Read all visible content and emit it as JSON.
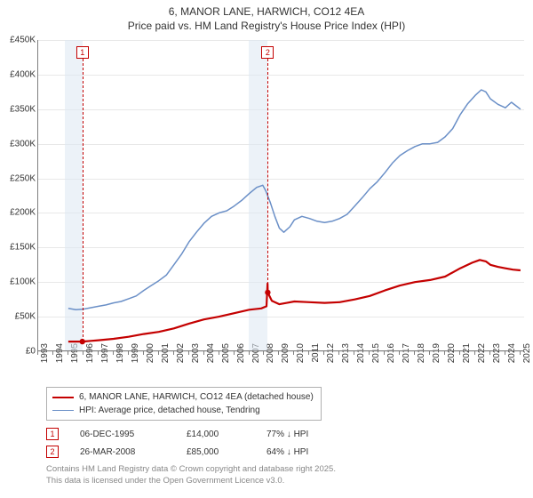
{
  "chart": {
    "title_line1": "6, MANOR LANE, HARWICH, CO12 4EA",
    "title_line2": "Price paid vs. HM Land Registry's House Price Index (HPI)",
    "title_fontsize": 12,
    "background_color": "#ffffff",
    "grid_color": "#e8e8e8",
    "axis_color": "#808080",
    "tick_fontsize": 10,
    "tick_color": "#333333",
    "y": {
      "min": 0,
      "max": 450000,
      "tick_step": 50000,
      "tick_labels": [
        "£0",
        "£50K",
        "£100K",
        "£150K",
        "£200K",
        "£250K",
        "£300K",
        "£350K",
        "£400K",
        "£450K"
      ]
    },
    "x": {
      "min": 1993,
      "max": 2025.3,
      "tick_step": 1,
      "tick_labels": [
        "1993",
        "1994",
        "1995",
        "1996",
        "1997",
        "1998",
        "1999",
        "2000",
        "2001",
        "2002",
        "2003",
        "2004",
        "2005",
        "2006",
        "2007",
        "2008",
        "2009",
        "2010",
        "2011",
        "2012",
        "2013",
        "2014",
        "2015",
        "2016",
        "2017",
        "2018",
        "2019",
        "2020",
        "2021",
        "2022",
        "2023",
        "2024",
        "2025"
      ]
    },
    "shade_bands": [
      {
        "x_start": 1994.8,
        "x_end": 1996.0,
        "color": "#dde7f2"
      },
      {
        "x_start": 2007.0,
        "x_end": 2008.25,
        "color": "#dde7f2"
      }
    ],
    "markers": [
      {
        "id": "1",
        "x": 1995.93,
        "top_y": 0.02,
        "line_to": 0.955
      },
      {
        "id": "2",
        "x": 2008.23,
        "top_y": 0.02,
        "line_to": 0.8
      }
    ],
    "series": [
      {
        "name": "price_paid",
        "label": "6, MANOR LANE, HARWICH, CO12 4EA (detached house)",
        "color": "#c40000",
        "width": 2.2,
        "points": [
          [
            1995.0,
            14000
          ],
          [
            1995.93,
            14000
          ],
          [
            1996.5,
            15000
          ],
          [
            1997.0,
            16000
          ],
          [
            1998.0,
            18000
          ],
          [
            1999.0,
            21000
          ],
          [
            2000.0,
            25000
          ],
          [
            2001.0,
            28000
          ],
          [
            2002.0,
            33000
          ],
          [
            2003.0,
            40000
          ],
          [
            2004.0,
            46000
          ],
          [
            2005.0,
            50000
          ],
          [
            2006.0,
            55000
          ],
          [
            2007.0,
            60000
          ],
          [
            2007.8,
            62000
          ],
          [
            2008.15,
            65000
          ],
          [
            2008.22,
            98000
          ],
          [
            2008.23,
            85000
          ],
          [
            2008.5,
            73000
          ],
          [
            2009.0,
            68000
          ],
          [
            2009.5,
            70000
          ],
          [
            2010.0,
            72000
          ],
          [
            2011.0,
            71000
          ],
          [
            2012.0,
            70000
          ],
          [
            2013.0,
            71000
          ],
          [
            2014.0,
            75000
          ],
          [
            2015.0,
            80000
          ],
          [
            2016.0,
            88000
          ],
          [
            2017.0,
            95000
          ],
          [
            2018.0,
            100000
          ],
          [
            2019.0,
            103000
          ],
          [
            2020.0,
            108000
          ],
          [
            2021.0,
            120000
          ],
          [
            2021.8,
            128000
          ],
          [
            2022.3,
            132000
          ],
          [
            2022.7,
            130000
          ],
          [
            2023.0,
            125000
          ],
          [
            2023.5,
            122000
          ],
          [
            2024.0,
            120000
          ],
          [
            2024.5,
            118000
          ],
          [
            2025.0,
            117000
          ]
        ],
        "sale_points": [
          [
            1995.93,
            14000
          ],
          [
            2008.23,
            85000
          ]
        ]
      },
      {
        "name": "hpi",
        "label": "HPI: Average price, detached house, Tendring",
        "color": "#6a8fc7",
        "width": 1.5,
        "points": [
          [
            1995.0,
            62000
          ],
          [
            1995.5,
            60000
          ],
          [
            1996.0,
            61000
          ],
          [
            1996.5,
            63000
          ],
          [
            1997.0,
            65000
          ],
          [
            1997.5,
            67000
          ],
          [
            1998.0,
            70000
          ],
          [
            1998.5,
            72000
          ],
          [
            1999.0,
            76000
          ],
          [
            1999.5,
            80000
          ],
          [
            2000.0,
            88000
          ],
          [
            2000.5,
            95000
          ],
          [
            2001.0,
            102000
          ],
          [
            2001.5,
            110000
          ],
          [
            2002.0,
            125000
          ],
          [
            2002.5,
            140000
          ],
          [
            2003.0,
            158000
          ],
          [
            2003.5,
            172000
          ],
          [
            2004.0,
            185000
          ],
          [
            2004.5,
            195000
          ],
          [
            2005.0,
            200000
          ],
          [
            2005.5,
            203000
          ],
          [
            2006.0,
            210000
          ],
          [
            2006.5,
            218000
          ],
          [
            2007.0,
            228000
          ],
          [
            2007.5,
            237000
          ],
          [
            2007.9,
            240000
          ],
          [
            2008.1,
            232000
          ],
          [
            2008.4,
            215000
          ],
          [
            2008.7,
            195000
          ],
          [
            2009.0,
            178000
          ],
          [
            2009.3,
            172000
          ],
          [
            2009.7,
            180000
          ],
          [
            2010.0,
            190000
          ],
          [
            2010.5,
            195000
          ],
          [
            2011.0,
            192000
          ],
          [
            2011.5,
            188000
          ],
          [
            2012.0,
            186000
          ],
          [
            2012.5,
            188000
          ],
          [
            2013.0,
            192000
          ],
          [
            2013.5,
            198000
          ],
          [
            2014.0,
            210000
          ],
          [
            2014.5,
            222000
          ],
          [
            2015.0,
            235000
          ],
          [
            2015.5,
            245000
          ],
          [
            2016.0,
            258000
          ],
          [
            2016.5,
            272000
          ],
          [
            2017.0,
            283000
          ],
          [
            2017.5,
            290000
          ],
          [
            2018.0,
            296000
          ],
          [
            2018.5,
            300000
          ],
          [
            2019.0,
            300000
          ],
          [
            2019.5,
            302000
          ],
          [
            2020.0,
            310000
          ],
          [
            2020.5,
            322000
          ],
          [
            2021.0,
            342000
          ],
          [
            2021.5,
            358000
          ],
          [
            2022.0,
            370000
          ],
          [
            2022.4,
            378000
          ],
          [
            2022.7,
            375000
          ],
          [
            2023.0,
            365000
          ],
          [
            2023.5,
            357000
          ],
          [
            2024.0,
            352000
          ],
          [
            2024.4,
            360000
          ],
          [
            2024.7,
            355000
          ],
          [
            2025.0,
            350000
          ]
        ]
      }
    ]
  },
  "legend": {
    "border_color": "#b0b0b0",
    "fontsize": 10
  },
  "sales_table": {
    "rows": [
      {
        "id": "1",
        "date": "06-DEC-1995",
        "price": "£14,000",
        "pct": "77% ↓ HPI"
      },
      {
        "id": "2",
        "date": "26-MAR-2008",
        "price": "£85,000",
        "pct": "64% ↓ HPI"
      }
    ]
  },
  "footer": {
    "line1": "Contains HM Land Registry data © Crown copyright and database right 2025.",
    "line2": "This data is licensed under the Open Government Licence v3.0."
  }
}
